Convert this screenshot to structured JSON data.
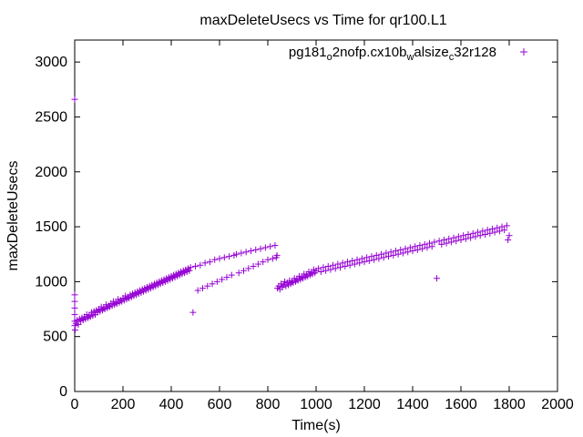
{
  "chart_data": {
    "type": "scatter",
    "title": "maxDeleteUsecs vs Time for qr100.L1",
    "xlabel": "Time(s)",
    "ylabel": "maxDeleteUsecs",
    "xlim": [
      0,
      2000
    ],
    "ylim": [
      0,
      3200
    ],
    "x_ticks": [
      0,
      200,
      400,
      600,
      800,
      1000,
      1200,
      1400,
      1600,
      1800,
      2000
    ],
    "y_ticks": [
      0,
      500,
      1000,
      1500,
      2000,
      2500,
      3000
    ],
    "x_tick_labels": [
      "0",
      "200",
      "400",
      "600",
      "800",
      "1000",
      "1200",
      "1400",
      "1600",
      "1800",
      "2000"
    ],
    "y_tick_labels": [
      "0",
      "500",
      "1000",
      "1500",
      "2000",
      "2500",
      "3000"
    ],
    "grid": false,
    "legend_position": "top-right",
    "series": [
      {
        "name": "pg181_o2nofp.cx10b_walsize_c32r128",
        "legend_parts": [
          {
            "text": "pg181",
            "sub": false
          },
          {
            "text": "o",
            "sub": true
          },
          {
            "text": "2nofp.cx10b",
            "sub": false
          },
          {
            "text": "w",
            "sub": true
          },
          {
            "text": "alsize",
            "sub": false
          },
          {
            "text": "c",
            "sub": true
          },
          {
            "text": "32r128",
            "sub": false
          }
        ],
        "marker": "plus",
        "color": "#9400d3",
        "points": [
          [
            0,
            2660
          ],
          [
            0,
            880
          ],
          [
            0,
            820
          ],
          [
            0,
            760
          ],
          [
            0,
            700
          ],
          [
            0,
            640
          ],
          [
            0,
            600
          ],
          [
            2,
            560
          ],
          [
            5,
            620
          ],
          [
            10,
            650
          ],
          [
            15,
            610
          ],
          [
            20,
            660
          ],
          [
            25,
            640
          ],
          [
            30,
            670
          ],
          [
            35,
            650
          ],
          [
            40,
            680
          ],
          [
            45,
            660
          ],
          [
            50,
            700
          ],
          [
            55,
            670
          ],
          [
            60,
            690
          ],
          [
            65,
            680
          ],
          [
            70,
            720
          ],
          [
            75,
            690
          ],
          [
            80,
            730
          ],
          [
            85,
            700
          ],
          [
            90,
            740
          ],
          [
            95,
            720
          ],
          [
            100,
            750
          ],
          [
            105,
            730
          ],
          [
            110,
            770
          ],
          [
            115,
            740
          ],
          [
            120,
            760
          ],
          [
            125,
            750
          ],
          [
            130,
            790
          ],
          [
            135,
            760
          ],
          [
            140,
            780
          ],
          [
            145,
            770
          ],
          [
            150,
            800
          ],
          [
            155,
            780
          ],
          [
            160,
            820
          ],
          [
            165,
            790
          ],
          [
            170,
            810
          ],
          [
            175,
            800
          ],
          [
            180,
            840
          ],
          [
            185,
            810
          ],
          [
            190,
            830
          ],
          [
            195,
            820
          ],
          [
            200,
            850
          ],
          [
            205,
            830
          ],
          [
            210,
            870
          ],
          [
            215,
            840
          ],
          [
            220,
            860
          ],
          [
            225,
            850
          ],
          [
            230,
            880
          ],
          [
            235,
            860
          ],
          [
            240,
            890
          ],
          [
            245,
            870
          ],
          [
            250,
            900
          ],
          [
            255,
            880
          ],
          [
            260,
            910
          ],
          [
            265,
            890
          ],
          [
            270,
            920
          ],
          [
            275,
            900
          ],
          [
            280,
            930
          ],
          [
            285,
            910
          ],
          [
            290,
            940
          ],
          [
            295,
            920
          ],
          [
            300,
            950
          ],
          [
            305,
            930
          ],
          [
            310,
            960
          ],
          [
            315,
            940
          ],
          [
            320,
            970
          ],
          [
            325,
            950
          ],
          [
            330,
            980
          ],
          [
            335,
            960
          ],
          [
            340,
            990
          ],
          [
            345,
            970
          ],
          [
            350,
            1000
          ],
          [
            355,
            980
          ],
          [
            360,
            1010
          ],
          [
            365,
            990
          ],
          [
            370,
            1020
          ],
          [
            375,
            1000
          ],
          [
            380,
            1030
          ],
          [
            385,
            1010
          ],
          [
            390,
            1040
          ],
          [
            395,
            1020
          ],
          [
            400,
            1050
          ],
          [
            405,
            1030
          ],
          [
            410,
            1060
          ],
          [
            415,
            1040
          ],
          [
            420,
            1070
          ],
          [
            425,
            1050
          ],
          [
            430,
            1080
          ],
          [
            435,
            1060
          ],
          [
            440,
            1090
          ],
          [
            445,
            1070
          ],
          [
            450,
            1100
          ],
          [
            455,
            1080
          ],
          [
            460,
            1110
          ],
          [
            465,
            1090
          ],
          [
            470,
            1120
          ],
          [
            475,
            1100
          ],
          [
            480,
            1130
          ],
          [
            490,
            720
          ],
          [
            500,
            1140
          ],
          [
            510,
            920
          ],
          [
            520,
            1150
          ],
          [
            530,
            940
          ],
          [
            540,
            1170
          ],
          [
            550,
            960
          ],
          [
            560,
            1180
          ],
          [
            570,
            980
          ],
          [
            580,
            1200
          ],
          [
            590,
            1000
          ],
          [
            600,
            1210
          ],
          [
            610,
            1020
          ],
          [
            620,
            1220
          ],
          [
            630,
            1040
          ],
          [
            640,
            1230
          ],
          [
            650,
            1060
          ],
          [
            660,
            1240
          ],
          [
            670,
            1250
          ],
          [
            680,
            1080
          ],
          [
            690,
            1260
          ],
          [
            700,
            1100
          ],
          [
            710,
            1270
          ],
          [
            720,
            1120
          ],
          [
            730,
            1280
          ],
          [
            740,
            1140
          ],
          [
            750,
            1290
          ],
          [
            760,
            1160
          ],
          [
            770,
            1300
          ],
          [
            780,
            1180
          ],
          [
            790,
            1310
          ],
          [
            800,
            1200
          ],
          [
            810,
            1320
          ],
          [
            820,
            1210
          ],
          [
            830,
            1330
          ],
          [
            835,
            1220
          ],
          [
            838,
            1240
          ],
          [
            840,
            940
          ],
          [
            845,
            960
          ],
          [
            850,
            930
          ],
          [
            855,
            980
          ],
          [
            860,
            950
          ],
          [
            865,
            970
          ],
          [
            870,
            1000
          ],
          [
            875,
            960
          ],
          [
            880,
            990
          ],
          [
            885,
            970
          ],
          [
            890,
            1010
          ],
          [
            895,
            980
          ],
          [
            900,
            1000
          ],
          [
            905,
            990
          ],
          [
            910,
            1030
          ],
          [
            915,
            1000
          ],
          [
            920,
            1020
          ],
          [
            925,
            1010
          ],
          [
            930,
            1050
          ],
          [
            935,
            1020
          ],
          [
            940,
            1040
          ],
          [
            945,
            1030
          ],
          [
            950,
            1070
          ],
          [
            955,
            1040
          ],
          [
            960,
            1060
          ],
          [
            965,
            1050
          ],
          [
            970,
            1090
          ],
          [
            975,
            1060
          ],
          [
            980,
            1080
          ],
          [
            985,
            1070
          ],
          [
            990,
            1110
          ],
          [
            995,
            1080
          ],
          [
            1000,
            1100
          ],
          [
            1010,
            1120
          ],
          [
            1020,
            1090
          ],
          [
            1030,
            1130
          ],
          [
            1040,
            1100
          ],
          [
            1050,
            1140
          ],
          [
            1060,
            1110
          ],
          [
            1070,
            1150
          ],
          [
            1080,
            1120
          ],
          [
            1090,
            1160
          ],
          [
            1100,
            1130
          ],
          [
            1110,
            1170
          ],
          [
            1120,
            1140
          ],
          [
            1130,
            1180
          ],
          [
            1140,
            1150
          ],
          [
            1150,
            1190
          ],
          [
            1160,
            1160
          ],
          [
            1170,
            1200
          ],
          [
            1180,
            1170
          ],
          [
            1190,
            1210
          ],
          [
            1200,
            1180
          ],
          [
            1210,
            1220
          ],
          [
            1220,
            1190
          ],
          [
            1230,
            1230
          ],
          [
            1240,
            1200
          ],
          [
            1250,
            1240
          ],
          [
            1260,
            1210
          ],
          [
            1270,
            1250
          ],
          [
            1280,
            1220
          ],
          [
            1290,
            1260
          ],
          [
            1300,
            1230
          ],
          [
            1310,
            1270
          ],
          [
            1320,
            1240
          ],
          [
            1330,
            1280
          ],
          [
            1340,
            1250
          ],
          [
            1350,
            1290
          ],
          [
            1360,
            1260
          ],
          [
            1370,
            1300
          ],
          [
            1380,
            1270
          ],
          [
            1390,
            1310
          ],
          [
            1400,
            1280
          ],
          [
            1410,
            1320
          ],
          [
            1420,
            1290
          ],
          [
            1430,
            1330
          ],
          [
            1440,
            1300
          ],
          [
            1450,
            1340
          ],
          [
            1460,
            1310
          ],
          [
            1470,
            1350
          ],
          [
            1480,
            1320
          ],
          [
            1490,
            1360
          ],
          [
            1500,
            1030
          ],
          [
            1510,
            1370
          ],
          [
            1520,
            1340
          ],
          [
            1530,
            1380
          ],
          [
            1540,
            1350
          ],
          [
            1550,
            1390
          ],
          [
            1560,
            1360
          ],
          [
            1570,
            1400
          ],
          [
            1580,
            1370
          ],
          [
            1590,
            1410
          ],
          [
            1600,
            1380
          ],
          [
            1610,
            1420
          ],
          [
            1620,
            1390
          ],
          [
            1630,
            1430
          ],
          [
            1640,
            1400
          ],
          [
            1650,
            1440
          ],
          [
            1660,
            1410
          ],
          [
            1670,
            1450
          ],
          [
            1680,
            1420
          ],
          [
            1690,
            1460
          ],
          [
            1700,
            1430
          ],
          [
            1710,
            1470
          ],
          [
            1720,
            1440
          ],
          [
            1730,
            1480
          ],
          [
            1740,
            1450
          ],
          [
            1750,
            1490
          ],
          [
            1760,
            1460
          ],
          [
            1770,
            1500
          ],
          [
            1780,
            1470
          ],
          [
            1790,
            1510
          ],
          [
            1795,
            1380
          ],
          [
            1800,
            1420
          ]
        ]
      }
    ]
  }
}
